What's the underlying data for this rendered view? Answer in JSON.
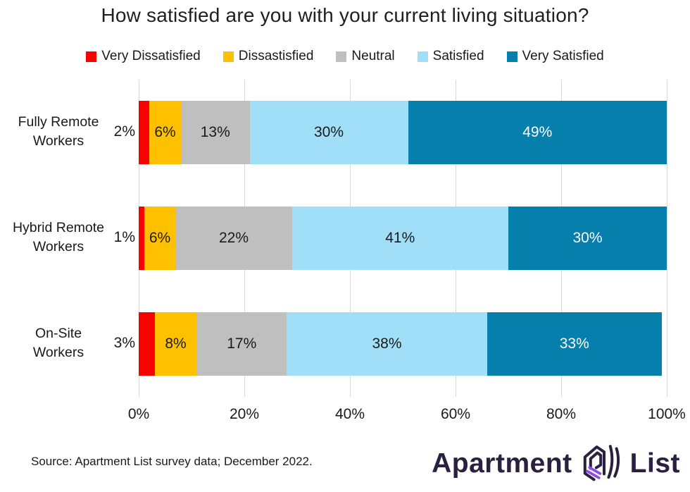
{
  "chart_data": {
    "type": "bar",
    "orientation": "horizontal-stacked",
    "title": "How satisfied are you with your current living situation?",
    "categories": [
      "Fully Remote\nWorkers",
      "Hybrid Remote\nWorkers",
      "On-Site\nWorkers"
    ],
    "series": [
      {
        "name": "Very Dissatisfied",
        "color": "#fa0000",
        "label_color": "#1a1a1a",
        "label_placement": "outside",
        "values": [
          2,
          1,
          3
        ]
      },
      {
        "name": "Dissastisfied",
        "color": "#ffc000",
        "label_color": "#1a1a1a",
        "label_placement": "inside",
        "values": [
          6,
          6,
          8
        ]
      },
      {
        "name": "Neutral",
        "color": "#bfbfbf",
        "label_color": "#1a1a1a",
        "label_placement": "inside",
        "values": [
          13,
          22,
          17
        ]
      },
      {
        "name": "Satisfied",
        "color": "#a1def7",
        "label_color": "#1a1a1a",
        "label_placement": "inside",
        "values": [
          30,
          41,
          38
        ]
      },
      {
        "name": "Very Satisfied",
        "color": "#077fad",
        "label_color": "#ffffff",
        "label_placement": "inside",
        "values": [
          49,
          30,
          33
        ]
      }
    ],
    "xlim": [
      0,
      100
    ],
    "x_ticks": [
      {
        "value": 0,
        "label": "0%"
      },
      {
        "value": 20,
        "label": "20%"
      },
      {
        "value": 40,
        "label": "40%"
      },
      {
        "value": 60,
        "label": "60%"
      },
      {
        "value": 80,
        "label": "80%"
      },
      {
        "value": 100,
        "label": "100%"
      }
    ],
    "grid": true,
    "gridline_color": "#d9d9d9",
    "legend_position": "top",
    "value_suffix": "%"
  },
  "footer": {
    "source": "Source: Apartment List survey data; December 2022.",
    "logo": {
      "word1": "Apartment",
      "word2": "List",
      "dark_color": "#2b2040",
      "purple_color": "#8c4bea"
    }
  }
}
